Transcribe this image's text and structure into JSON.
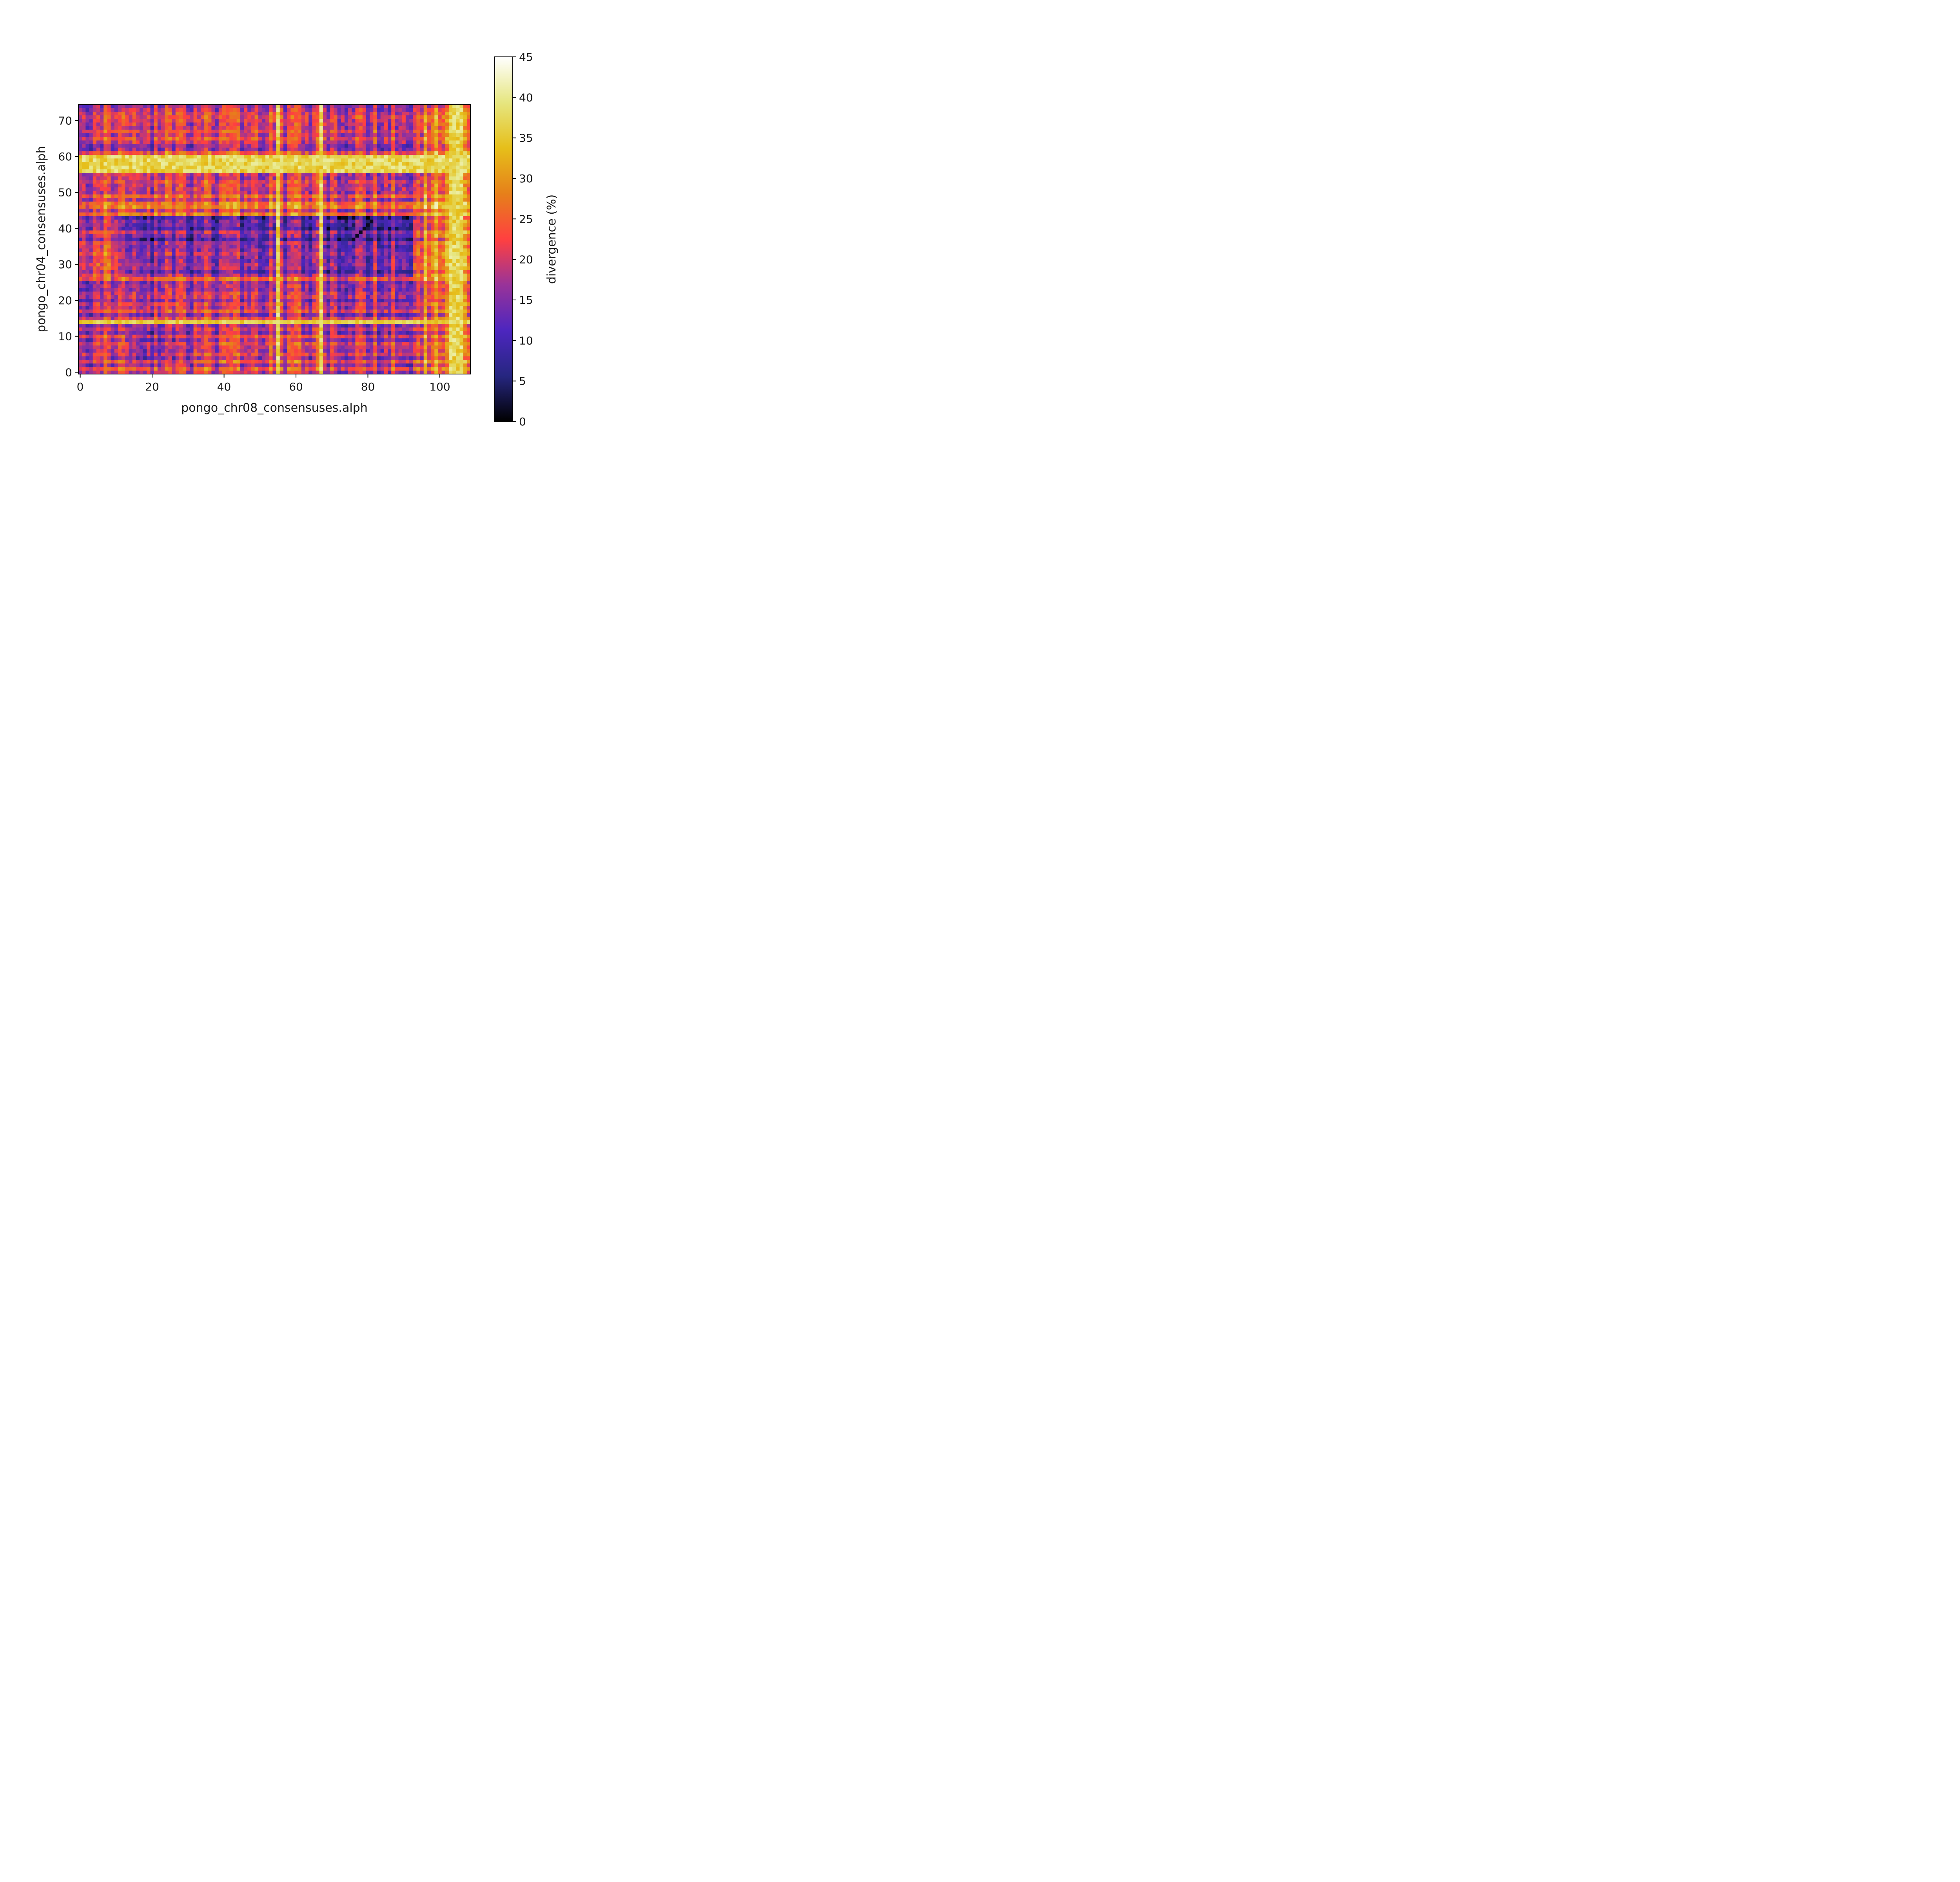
{
  "chart_data": {
    "type": "heatmap",
    "xlabel": "pongo_chr08_consensuses.alph",
    "ylabel": "pongo_chr04_consensuses.alph",
    "x_ticks": [
      0,
      20,
      40,
      60,
      80,
      100
    ],
    "y_ticks": [
      0,
      10,
      20,
      30,
      40,
      50,
      60,
      70
    ],
    "xlim": [
      -0.5,
      108.5
    ],
    "ylim": [
      -0.5,
      74.5
    ],
    "n_cols": 109,
    "n_rows": 75,
    "colorbar": {
      "label": "divergence (%)",
      "ticks": [
        0,
        5,
        10,
        15,
        20,
        25,
        30,
        35,
        40,
        45
      ],
      "range": [
        0,
        45
      ],
      "colormap": "CMRmap",
      "stops": [
        "#000000",
        "#262680",
        "#4d26bf",
        "#993399",
        "#ff4040",
        "#e6801a",
        "#e6bf1a",
        "#e6e680",
        "#ffffff"
      ]
    },
    "summary": {
      "high_band_rows": [
        56,
        60
      ],
      "high_band_value": 37,
      "high_column_bands": [
        [
          103,
          106
        ],
        [
          55,
          55
        ],
        [
          67,
          67
        ]
      ],
      "high_row": 14,
      "low_block_rows": [
        27,
        43
      ],
      "low_block_cols": [
        11,
        92
      ],
      "low_diagonal_points": [
        [
          77,
          38
        ],
        [
          78,
          39
        ],
        [
          79,
          40
        ],
        [
          80,
          41
        ],
        [
          81,
          42
        ]
      ],
      "value_range": [
        0,
        45
      ]
    }
  }
}
